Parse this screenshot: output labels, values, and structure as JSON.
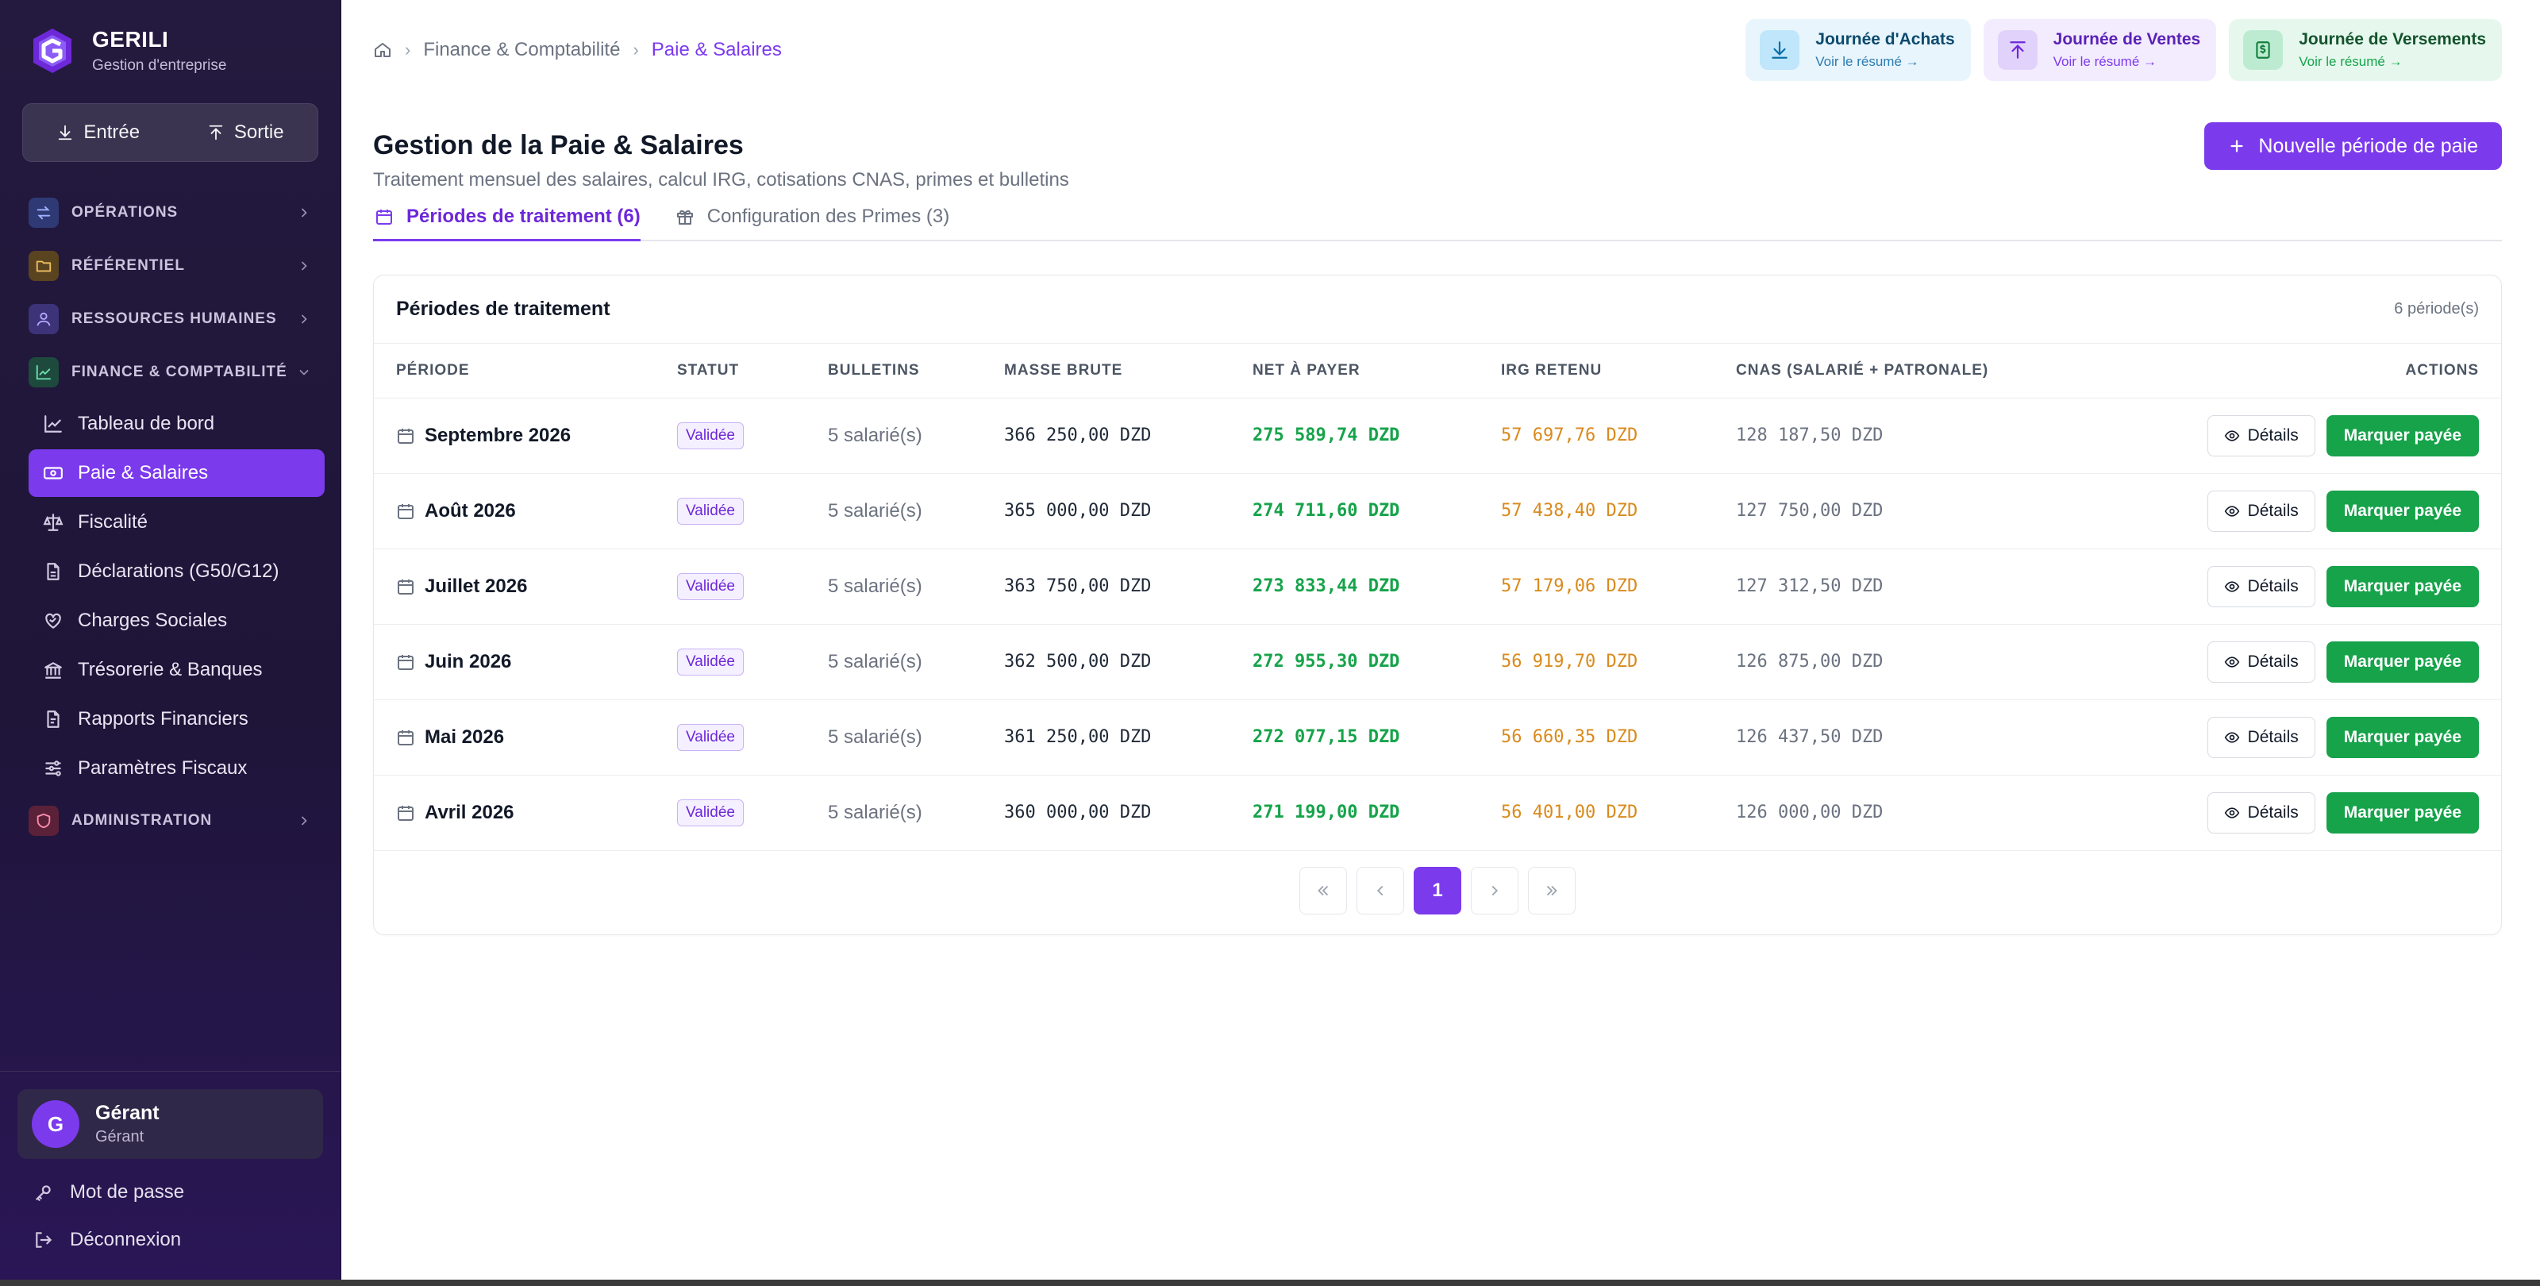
{
  "brand": {
    "name": "GERILI",
    "subtitle": "Gestion d'entreprise"
  },
  "io": {
    "entree": "Entrée",
    "sortie": "Sortie"
  },
  "sidebar": {
    "sections": [
      {
        "label": "OPÉRATIONS",
        "color": "#4b5db8"
      },
      {
        "label": "RÉFÉRENTIEL",
        "color": "#b78a2a"
      },
      {
        "label": "RESSOURCES HUMAINES",
        "color": "#5b4bc4"
      },
      {
        "label": "FINANCE & COMPTABILITÉ",
        "color": "#1f8a64"
      },
      {
        "label": "ADMINISTRATION",
        "color": "#b8405e"
      }
    ],
    "finance_items": [
      {
        "label": "Tableau de bord",
        "icon": "line-chart-icon"
      },
      {
        "label": "Paie & Salaires",
        "icon": "banknote-icon",
        "active": true
      },
      {
        "label": "Fiscalité",
        "icon": "scale-icon"
      },
      {
        "label": "Déclarations (G50/G12)",
        "icon": "file-text-icon"
      },
      {
        "label": "Charges Sociales",
        "icon": "heart-handshake-icon"
      },
      {
        "label": "Trésorerie & Banques",
        "icon": "bank-icon"
      },
      {
        "label": "Rapports Financiers",
        "icon": "report-icon"
      },
      {
        "label": "Paramètres Fiscaux",
        "icon": "sliders-icon"
      }
    ]
  },
  "user": {
    "initial": "G",
    "name": "Gérant",
    "role": "Gérant"
  },
  "side_links": {
    "password": "Mot de passe",
    "logout": "Déconnexion"
  },
  "breadcrumb": {
    "parent": "Finance & Comptabilité",
    "current": "Paie & Salaires"
  },
  "journals": [
    {
      "title": "Journée d'Achats",
      "sub": "Voir le résumé →"
    },
    {
      "title": "Journée de Ventes",
      "sub": "Voir le résumé →"
    },
    {
      "title": "Journée de Versements",
      "sub": "Voir le résumé →"
    }
  ],
  "page": {
    "title": "Gestion de la Paie & Salaires",
    "subtitle": "Traitement mensuel des salaires, calcul IRG, cotisations CNAS, primes et bulletins",
    "new_button": "Nouvelle période de paie"
  },
  "tabs": [
    {
      "label": "Périodes de traitement (6)",
      "active": true
    },
    {
      "label": "Configuration des Primes (3)",
      "active": false
    }
  ],
  "table": {
    "title": "Périodes de traitement",
    "count": "6 période(s)",
    "headers": [
      "PÉRIODE",
      "STATUT",
      "BULLETINS",
      "MASSE BRUTE",
      "NET À PAYER",
      "IRG RETENU",
      "CNAS (SALARIÉ + PATRONALE)",
      "ACTIONS"
    ],
    "details_label": "Détails",
    "paid_label": "Marquer payée",
    "rows": [
      {
        "period": "Septembre 2026",
        "status": "Validée",
        "bulletins": "5 salarié(s)",
        "brute": "366 250,00 DZD",
        "net": "275 589,74 DZD",
        "irg": "57 697,76 DZD",
        "cnas": "128 187,50 DZD"
      },
      {
        "period": "Août 2026",
        "status": "Validée",
        "bulletins": "5 salarié(s)",
        "brute": "365 000,00 DZD",
        "net": "274 711,60 DZD",
        "irg": "57 438,40 DZD",
        "cnas": "127 750,00 DZD"
      },
      {
        "period": "Juillet 2026",
        "status": "Validée",
        "bulletins": "5 salarié(s)",
        "brute": "363 750,00 DZD",
        "net": "273 833,44 DZD",
        "irg": "57 179,06 DZD",
        "cnas": "127 312,50 DZD"
      },
      {
        "period": "Juin 2026",
        "status": "Validée",
        "bulletins": "5 salarié(s)",
        "brute": "362 500,00 DZD",
        "net": "272 955,30 DZD",
        "irg": "56 919,70 DZD",
        "cnas": "126 875,00 DZD"
      },
      {
        "period": "Mai 2026",
        "status": "Validée",
        "bulletins": "5 salarié(s)",
        "brute": "361 250,00 DZD",
        "net": "272 077,15 DZD",
        "irg": "56 660,35 DZD",
        "cnas": "126 437,50 DZD"
      },
      {
        "period": "Avril 2026",
        "status": "Validée",
        "bulletins": "5 salarié(s)",
        "brute": "360 000,00 DZD",
        "net": "271 199,00 DZD",
        "irg": "56 401,00 DZD",
        "cnas": "126 000,00 DZD"
      }
    ]
  },
  "pagination": {
    "current": "1"
  },
  "colors": {
    "accent": "#7c3aed",
    "success": "#16a34a",
    "warning": "#d98a1c"
  }
}
